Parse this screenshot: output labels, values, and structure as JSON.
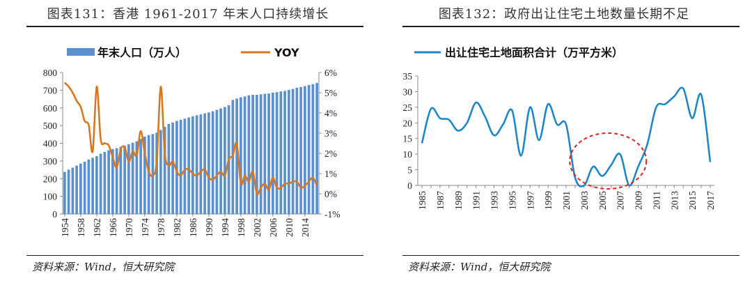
{
  "left_title": "图表131：香港 1961-2017 年末人口持续增长",
  "right_title": "图表132：政府出让住宅土地数量长期不足",
  "left_source": "资料来源：Wind，恒大研究院",
  "right_source": "资料来源：Wind，恒大研究院",
  "colors": {
    "bar": "#5b8fd0",
    "yoy": "#d9771f",
    "land": "#1f86c8",
    "circle": "#e02020"
  },
  "chart_data": [
    {
      "type": "bar+line",
      "title": "",
      "legend": [
        "年末人口（万人）",
        "YOY"
      ],
      "x_tick_labels": [
        "1954",
        "1958",
        "1962",
        "1966",
        "1970",
        "1974",
        "1978",
        "1982",
        "1986",
        "1990",
        "1994",
        "1998",
        "2002",
        "2006",
        "2010",
        "2014"
      ],
      "y_left_ticks": [
        "800",
        "700",
        "600",
        "500",
        "400",
        "300",
        "200",
        "100",
        "0"
      ],
      "y_right_ticks": [
        "6%",
        "5%",
        "4%",
        "3%",
        "2%",
        "1%",
        "0%",
        "-1%"
      ],
      "ylim_left": [
        0,
        800
      ],
      "ylim_right": [
        -1,
        6
      ],
      "x": [
        1954,
        1955,
        1956,
        1957,
        1958,
        1959,
        1960,
        1961,
        1962,
        1963,
        1964,
        1965,
        1966,
        1967,
        1968,
        1969,
        1970,
        1971,
        1972,
        1973,
        1974,
        1975,
        1976,
        1977,
        1978,
        1979,
        1980,
        1981,
        1982,
        1983,
        1984,
        1985,
        1986,
        1987,
        1988,
        1989,
        1990,
        1991,
        1992,
        1993,
        1994,
        1995,
        1996,
        1997,
        1998,
        1999,
        2000,
        2001,
        2002,
        2003,
        2004,
        2005,
        2006,
        2007,
        2008,
        2009,
        2010,
        2011,
        2012,
        2013,
        2014,
        2015,
        2016,
        2017
      ],
      "series": [
        {
          "name": "年末人口（万人）",
          "axis": "left",
          "values": [
            238,
            251,
            262,
            274,
            285,
            296,
            308,
            318,
            327,
            341,
            351,
            360,
            367,
            372,
            380,
            386,
            394,
            403,
            411,
            424,
            438,
            446,
            452,
            460,
            475,
            493,
            509,
            518,
            526,
            533,
            539,
            546,
            552,
            558,
            563,
            569,
            574,
            581,
            589,
            597,
            605,
            615,
            645,
            653,
            660,
            665,
            671,
            674,
            674,
            677,
            680,
            681,
            686,
            689,
            693,
            696,
            702,
            707,
            714,
            718,
            723,
            729,
            734,
            741
          ]
        },
        {
          "name": "YOY",
          "axis": "right",
          "values": [
            5.5,
            5.3,
            5.0,
            4.6,
            4.3,
            3.6,
            3.4,
            2.1,
            5.3,
            2.7,
            2.5,
            2.4,
            1.8,
            1.3,
            2.2,
            2.3,
            1.6,
            2.1,
            1.9,
            3.1,
            2.0,
            1.1,
            0.9,
            1.6,
            5.3,
            2.0,
            1.4,
            1.6,
            1.1,
            0.9,
            1.2,
            1.2,
            1.0,
            0.9,
            1.1,
            1.2,
            0.8,
            0.7,
            0.9,
            1.1,
            0.9,
            1.7,
            1.9,
            2.5,
            0.5,
            0.9,
            0.6,
            1.1,
            0.0,
            0.3,
            0.5,
            0.2,
            0.8,
            0.3,
            0.3,
            0.5,
            0.5,
            0.6,
            0.6,
            0.3,
            0.4,
            0.6,
            0.8,
            0.4
          ]
        }
      ]
    },
    {
      "type": "line",
      "title": "",
      "legend": [
        "出让住宅土地面积合计（万平方米）"
      ],
      "x_tick_labels": [
        "1985",
        "1987",
        "1989",
        "1991",
        "1993",
        "1995",
        "1997",
        "1999",
        "2001",
        "2003",
        "2005",
        "2007",
        "2009",
        "2011",
        "2013",
        "2015",
        "2017"
      ],
      "y_ticks": [
        "35",
        "30",
        "25",
        "20",
        "15",
        "10",
        "5",
        "0"
      ],
      "ylim": [
        0,
        35
      ],
      "x": [
        1985,
        1986,
        1987,
        1988,
        1989,
        1990,
        1991,
        1992,
        1993,
        1994,
        1995,
        1996,
        1997,
        1998,
        1999,
        2000,
        2001,
        2002,
        2003,
        2004,
        2005,
        2006,
        2007,
        2008,
        2009,
        2010,
        2011,
        2012,
        2013,
        2014,
        2015,
        2016,
        2017
      ],
      "series": [
        {
          "name": "出让住宅土地面积合计（万平方米）",
          "values": [
            13.5,
            24.5,
            21.5,
            21,
            17.5,
            20,
            26.5,
            22,
            16,
            19.5,
            24,
            9.5,
            25,
            14.5,
            26,
            19.5,
            19.5,
            2.5,
            0,
            6,
            3,
            6.5,
            10,
            0,
            6,
            13,
            25,
            26,
            28.5,
            31,
            21.5,
            29,
            7.5
          ]
        }
      ],
      "annotation": "dashed red circle around 2002–2009 low values"
    }
  ]
}
